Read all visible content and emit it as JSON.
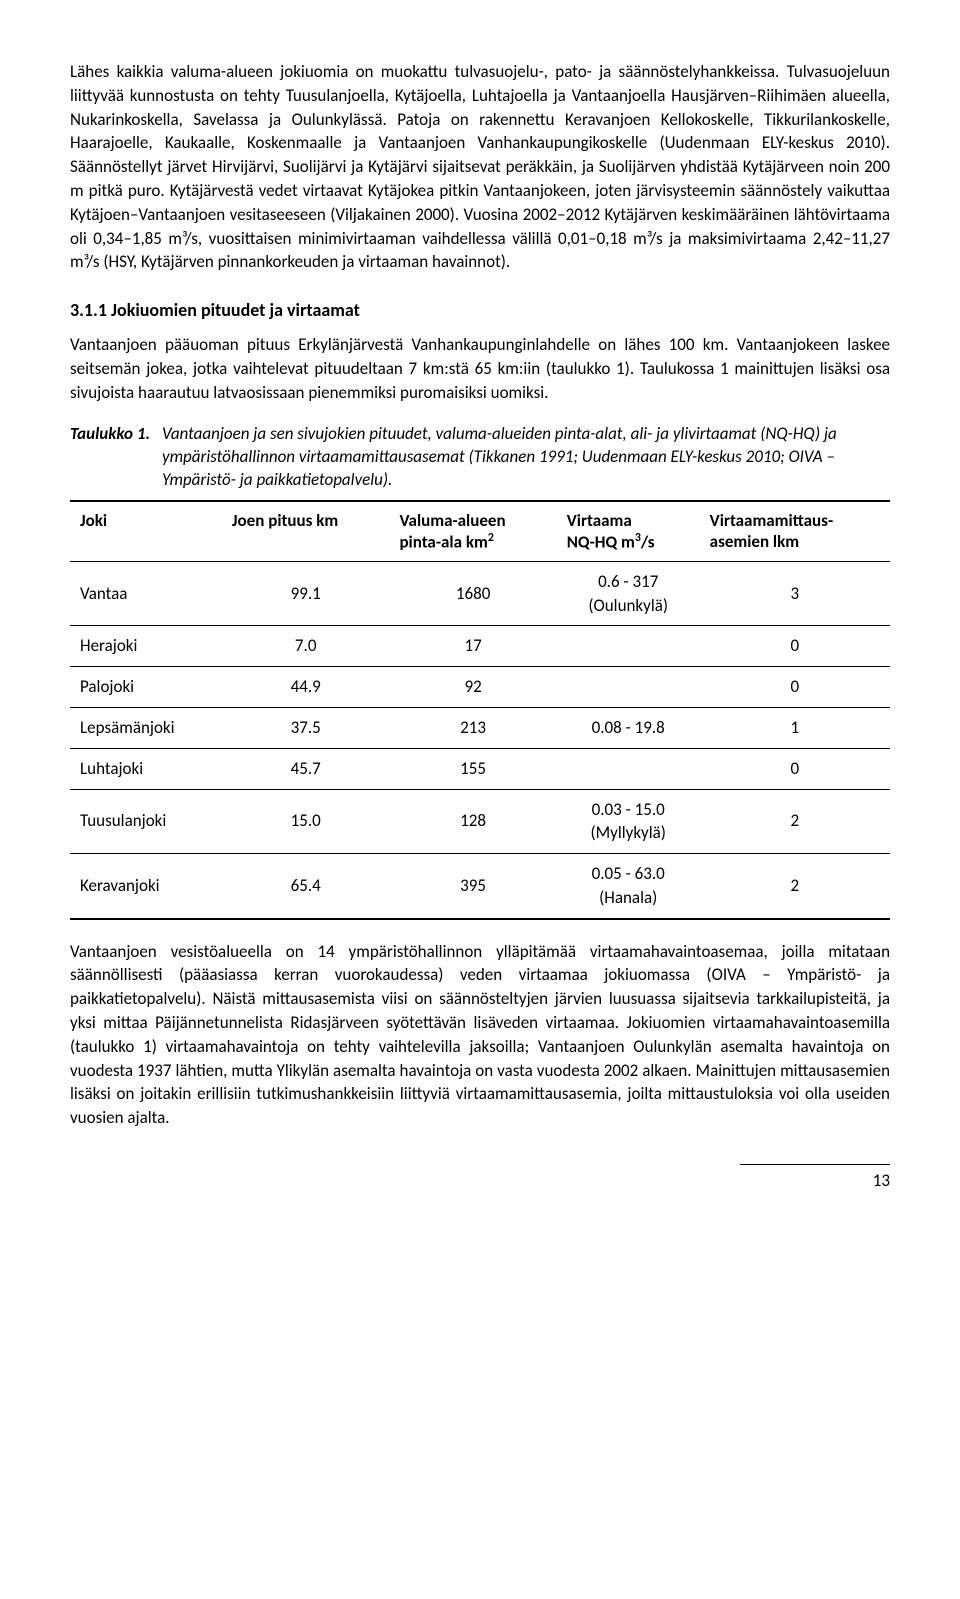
{
  "para1": "Lähes kaikkia valuma-alueen jokiuomia on muokattu tulvasuojelu-, pato- ja säännöstelyhankkeissa. Tulvasuojeluun liittyvää kunnostusta on tehty Tuusulanjoella, Kytäjoella, Luhtajoella ja Vantaanjoella Hausjärven–Riihimäen alueella, Nukarinkoskella, Savelassa ja Oulunkylässä. Patoja on rakennettu Keravanjoen Kellokoskelle, Tikkurilankoskelle, Haarajoelle, Kaukaalle, Koskenmaalle ja Vantaanjoen Vanhankaupungikoskelle (Uudenmaan ELY-keskus 2010). Säännöstellyt järvet Hirvijärvi, Suolijärvi ja Kytäjärvi sijaitsevat peräkkäin, ja Suolijärven yhdistää Kytäjärveen noin 200 m pitkä puro. Kytäjärvestä vedet virtaavat Kytäjokea pitkin Vantaanjokeen, joten järvisysteemin säännöstely vaikuttaa Kytäjoen–Vantaanjoen vesitaseeseen (Viljakainen 2000). Vuosina 2002–2012 Kytäjärven keskimääräinen lähtövirtaama oli 0,34–1,85 m³/s, vuosittaisen minimivirtaaman vaihdellessa välillä 0,01–0,18 m³/s ja maksimivirtaama 2,42–11,27 m³/s (HSY, Kytäjärven pinnankorkeuden ja virtaaman havainnot).",
  "heading": "3.1.1  Jokiuomien pituudet ja virtaamat",
  "para2": "Vantaanjoen pääuoman pituus Erkylänjärvestä Vanhankaupunginlahdelle on lähes 100 km. Vantaanjokeen laskee seitsemän jokea, jotka vaihtelevat pituudeltaan 7 km:stä 65 km:iin (taulukko 1). Taulukossa 1 mainittujen lisäksi osa sivujoista haarautuu latvaosissaan pienemmiksi puromaisiksi uomiksi.",
  "caption_label": "Taulukko 1.",
  "caption_text": "Vantaanjoen ja sen sivujokien pituudet, valuma-alueiden pinta-alat, ali- ja ylivirtaamat (NQ-HQ) ja ympäristöhallinnon virtaamamittausasemat (Tikkanen 1991; Uudenmaan ELY-keskus 2010; OIVA – Ympäristö- ja paikkatietopalvelu).",
  "table": {
    "columns": [
      "Joki",
      "Joen pituus km",
      "Valuma-alueen pinta-ala km²",
      "Virtaama NQ-HQ m³/s",
      "Virtaamamittausasemien lkm"
    ],
    "col0": "Joki",
    "col1": "Joen pituus km",
    "col2a": "Valuma-alueen",
    "col2b": "pinta-ala km",
    "col3a": "Virtaama",
    "col3b": "NQ-HQ m",
    "col4a": "Virtaamamittaus-",
    "col4b": "asemien lkm",
    "rows": [
      {
        "name": "Vantaa",
        "len": "99.1",
        "area": "1680",
        "flow": "0.6 - 317 (Oulunkylä)",
        "stn": "3"
      },
      {
        "name": "Herajoki",
        "len": "7.0",
        "area": "17",
        "flow": "",
        "stn": "0"
      },
      {
        "name": "Palojoki",
        "len": "44.9",
        "area": "92",
        "flow": "",
        "stn": "0"
      },
      {
        "name": "Lepsämänjoki",
        "len": "37.5",
        "area": "213",
        "flow": "0.08 - 19.8",
        "stn": "1"
      },
      {
        "name": "Luhtajoki",
        "len": "45.7",
        "area": "155",
        "flow": "",
        "stn": "0"
      },
      {
        "name": "Tuusulanjoki",
        "len": "15.0",
        "area": "128",
        "flow": "0.03 - 15.0 (Myllykylä)",
        "stn": "2"
      },
      {
        "name": "Keravanjoki",
        "len": "65.4",
        "area": "395",
        "flow": "0.05 - 63.0 (Hanala)",
        "stn": "2"
      }
    ]
  },
  "para3": "Vantaanjoen vesistöalueella on 14 ympäristöhallinnon ylläpitämää virtaamahavaintoasemaa, joilla mitataan säännöllisesti (pääasiassa kerran vuorokaudessa) veden virtaamaa jokiuomassa (OIVA – Ympäristö- ja paikkatietopalvelu). Näistä mittausasemista viisi on säännösteltyjen järvien luusuassa sijaitsevia tarkkailupisteitä, ja yksi mittaa Päijännetunnelista Ridasjärveen syötettävän lisäveden virtaamaa. Jokiuomien virtaamahavaintoasemilla (taulukko 1) virtaamahavaintoja on tehty vaihtelevilla jaksoilla; Vantaanjoen Oulunkylän asemalta havaintoja on vuodesta 1937 lähtien, mutta Ylikylän asemalta havaintoja on vasta vuodesta 2002 alkaen. Mainittujen mittausasemien lisäksi on joitakin erillisiin tutkimushankkeisiin liittyviä virtaamamittausasemia, joilta mittaustuloksia voi olla useiden vuosien ajalta.",
  "page_number": "13"
}
